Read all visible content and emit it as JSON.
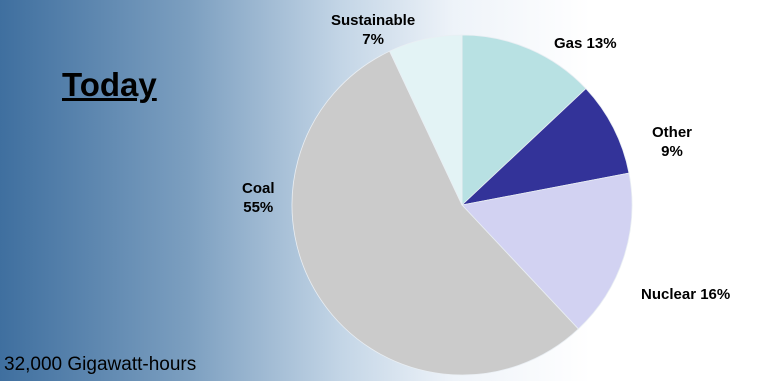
{
  "title": "Today",
  "footnote": "32,000 Gigawatt-hours",
  "chart_data": {
    "type": "pie",
    "slices": [
      {
        "name": "Gas",
        "value": 13,
        "color": "#b8e1e3",
        "label_lines": [
          "Gas 13%"
        ]
      },
      {
        "name": "Other",
        "value": 9,
        "color": "#333399",
        "label_lines": [
          "Other",
          "9%"
        ]
      },
      {
        "name": "Nuclear",
        "value": 16,
        "color": "#d2d2f2",
        "label_lines": [
          "Nuclear 16%"
        ]
      },
      {
        "name": "Coal",
        "value": 55,
        "color": "#cbcbcb",
        "label_lines": [
          "Coal",
          "55%"
        ]
      },
      {
        "name": "Sustainable",
        "value": 7,
        "color": "#e3f3f5",
        "label_lines": [
          "Sustainable",
          "7%"
        ]
      }
    ],
    "start_angle_deg": 0,
    "direction": "clockwise"
  }
}
